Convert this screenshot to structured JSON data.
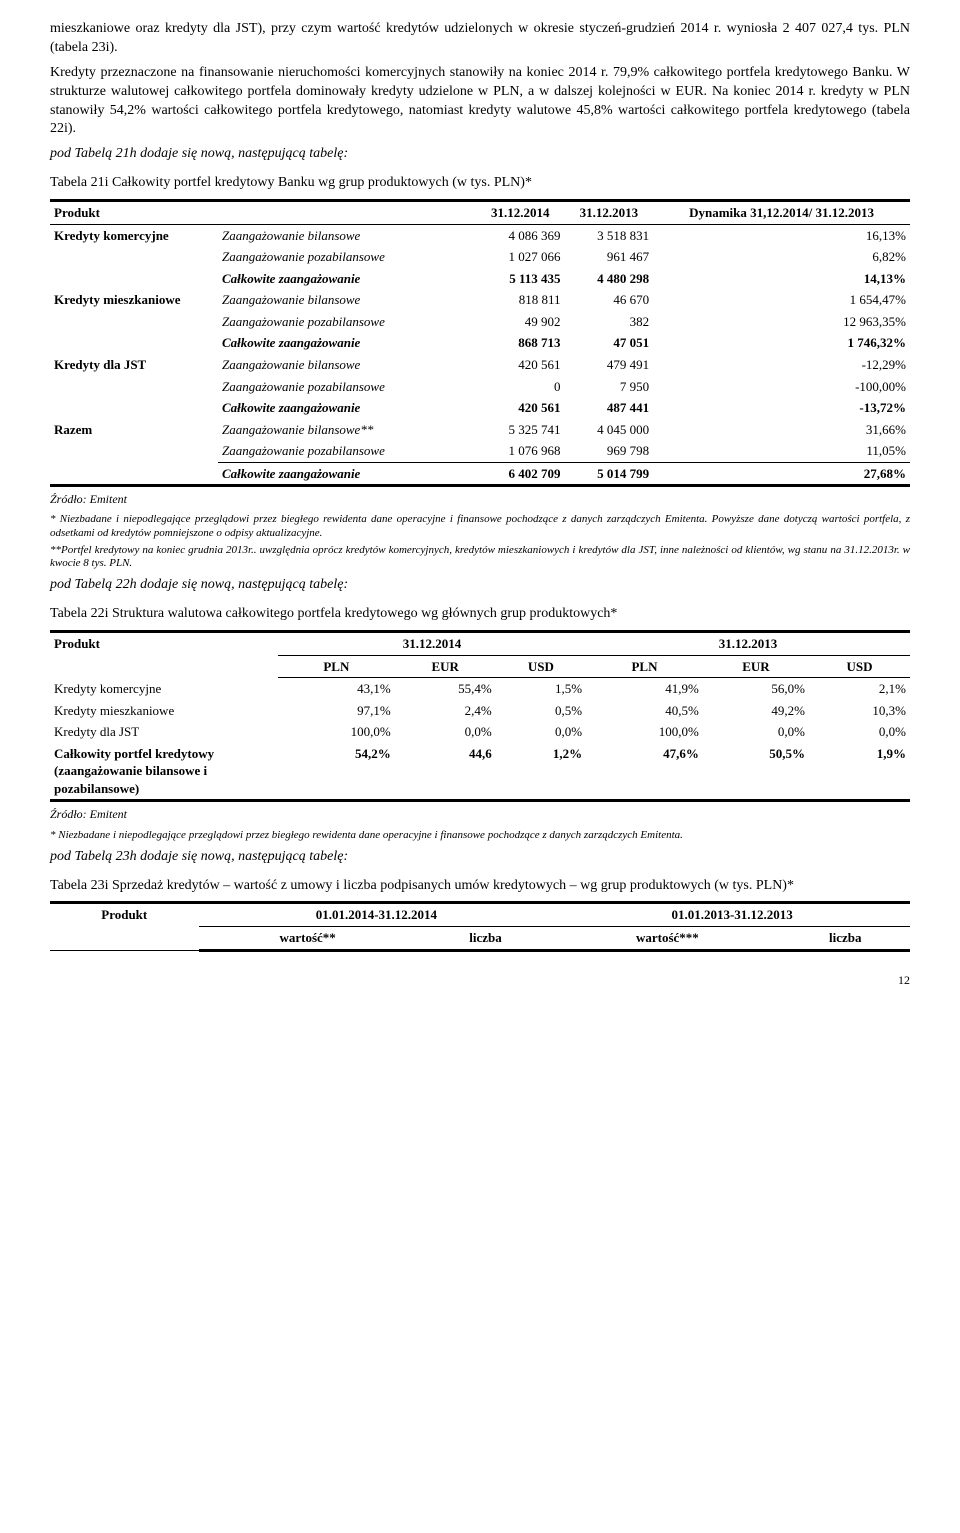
{
  "para1": "mieszkaniowe oraz kredyty dla JST), przy czym wartość kredytów udzielonych w okresie styczeń-grudzień 2014 r. wyniosła 2 407 027,4 tys. PLN (tabela 23i).",
  "para2": "Kredyty przeznaczone na finansowanie nieruchomości komercyjnych stanowiły na koniec 2014 r. 79,9% całkowitego portfela kredytowego Banku. W strukturze walutowej całkowitego portfela dominowały kredyty udzielone w PLN, a w dalszej kolejności w EUR. Na koniec 2014 r. kredyty w PLN stanowiły 54,2% wartości całkowitego portfela kredytowego, natomiast kredyty walutowe 45,8% wartości całkowitego portfela kredytowego (tabela 22i).",
  "pod21": "pod Tabelą 21h dodaje się nową, następującą tabelę:",
  "t21_title": "Tabela 21i Całkowity portfel kredytowy Banku wg grup produktowych (w tys. PLN)*",
  "h_product": "Produkt",
  "h_d1": "31.12.2014",
  "h_d2": "31.12.2013",
  "h_dyn": "Dynamika 31,12.2014/ 31.12.2013",
  "r1": "Kredyty komercyjne",
  "r2": "Kredyty mieszkaniowe",
  "r3": "Kredyty dla JST",
  "r4": "Razem",
  "zb": "Zaangażowanie bilansowe",
  "zbstar": "Zaangażowanie bilansowe**",
  "zp": "Zaangażowanie pozabilansowe",
  "cz": "Całkowite zaangażowanie",
  "t21": {
    "a1": "4 086 369",
    "a2": "3 518 831",
    "a3": "16,13%",
    "b1": "1 027 066",
    "b2": "961 467",
    "b3": "6,82%",
    "c1": "5 113 435",
    "c2": "4 480 298",
    "c3": "14,13%",
    "d1": "818 811",
    "d2": "46 670",
    "d3": "1 654,47%",
    "e1": "49 902",
    "e2": "382",
    "e3": "12 963,35%",
    "f1": "868 713",
    "f2": "47 051",
    "f3": "1 746,32%",
    "g1": "420 561",
    "g2": "479 491",
    "g3": "-12,29%",
    "h1": "0",
    "h2": "7 950",
    "h3": "-100,00%",
    "i1": "420 561",
    "i2": "487 441",
    "i3": "-13,72%",
    "j1": "5 325 741",
    "j2": "4 045 000",
    "j3": "31,66%",
    "k1": "1 076 968",
    "k2": "969 798",
    "k3": "11,05%",
    "l1": "6 402 709",
    "l2": "5 014 799",
    "l3": "27,68%"
  },
  "src": "Źródło: Emitent",
  "note21a": "* Niezbadane i niepodlegające przeglądowi  przez biegłego rewidenta dane operacyjne i finansowe pochodzące z danych zarządczych Emitenta. Powyższe dane dotyczą wartości portfela, z odsetkami od kredytów pomniejszone o odpisy aktualizacyjne.",
  "note21b": "**Portfel kredytowy na koniec grudnia 2013r.. uwzględnia  oprócz kredytów komercyjnych, kredytów mieszkaniowych i kredytów dla JST, inne należności od klientów, wg stanu na 31.12.2013r. w kwocie 8  tys. PLN.",
  "pod22": "pod Tabelą 22h dodaje się nową, następującą tabelę:",
  "t22_title": "Tabela 22i Struktura walutowa całkowitego portfela kredytowego wg głównych grup produktowych*",
  "t22h": {
    "pln": "PLN",
    "eur": "EUR",
    "usd": "USD"
  },
  "t22r4": "Całkowity portfel kredytowy (zaangażowanie bilansowe i pozabilansowe)",
  "t22": {
    "a": [
      "43,1%",
      "55,4%",
      "1,5%",
      "41,9%",
      "56,0%",
      "2,1%"
    ],
    "b": [
      "97,1%",
      "2,4%",
      "0,5%",
      "40,5%",
      "49,2%",
      "10,3%"
    ],
    "c": [
      "100,0%",
      "0,0%",
      "0,0%",
      "100,0%",
      "0,0%",
      "0,0%"
    ],
    "d": [
      "54,2%",
      "44,6",
      "1,2%",
      "47,6%",
      "50,5%",
      "1,9%"
    ]
  },
  "note22": "* Niezbadane i niepodlegające przeglądowi  przez biegłego rewidenta dane operacyjne i finansowe pochodzące z danych zarządczych Emitenta.",
  "pod23": "pod Tabelą 23h dodaje się nową, następującą tabelę:",
  "t23_title": "Tabela 23i Sprzedaż kredytów – wartość z umowy i liczba podpisanych umów kredytowych – wg grup produktowych (w tys. PLN)*",
  "t23h1": "01.01.2014-31.12.2014",
  "t23h2": "01.01.2013-31.12.2013",
  "t23c": {
    "w": "wartość**",
    "l": "liczba",
    "w2": "wartość***",
    "l2": "liczba"
  },
  "pagenum": "12"
}
